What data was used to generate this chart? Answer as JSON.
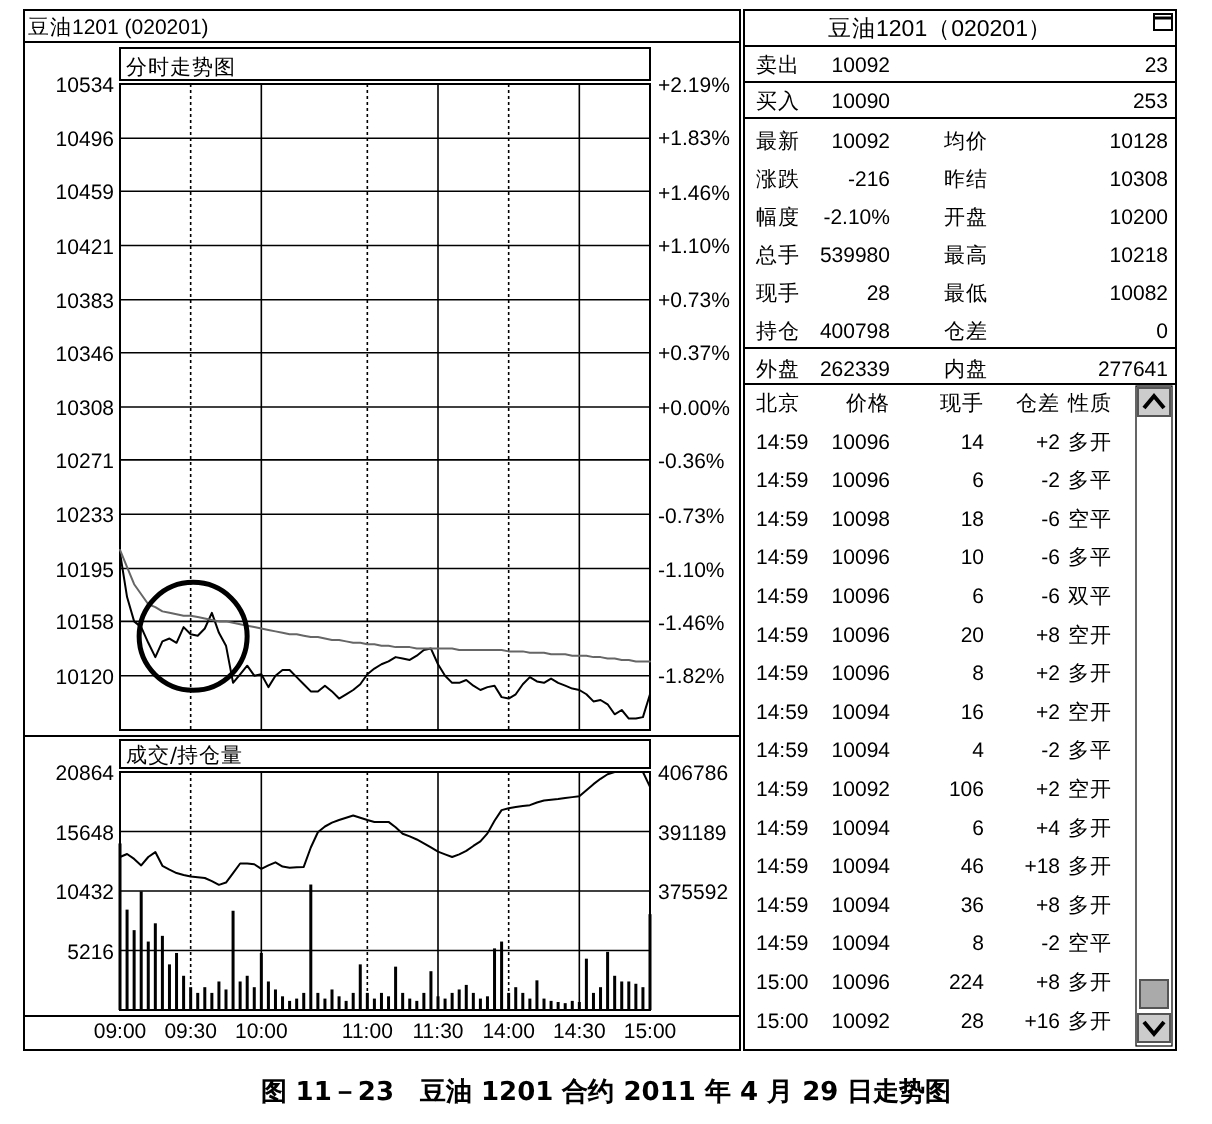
{
  "chart_data": [
    {
      "type": "line",
      "title": "分时走势图",
      "annotations": [
        "豆油1201 (020201)"
      ],
      "grid": true,
      "categories": [
        null,
        null,
        null,
        null,
        null,
        null,
        null,
        null,
        null,
        null,
        null,
        null,
        null,
        null,
        null,
        null,
        null,
        null,
        null,
        null,
        null,
        null,
        null,
        null,
        null,
        null,
        null,
        null,
        null,
        null,
        null,
        null,
        null,
        null,
        null,
        null,
        null,
        null,
        null,
        null,
        null,
        null,
        null,
        null,
        null,
        null,
        null,
        null,
        null,
        null,
        null,
        null,
        null,
        null,
        null,
        null,
        null,
        null,
        null,
        null,
        null,
        null,
        null,
        null,
        null,
        null,
        null,
        null,
        null,
        null,
        null,
        null,
        null,
        null,
        null,
        null
      ],
      "ylim": [
        10082,
        10534
      ],
      "yticks": [
        10120,
        10158,
        10195,
        10233,
        10271,
        10308,
        10346,
        10383,
        10421,
        10459,
        10496,
        10534
      ],
      "y2lim": [
        -2.19,
        2.19
      ],
      "y2ticks": [
        {
          "value": -1.82,
          "label": "-1.82%"
        },
        {
          "value": -1.46,
          "label": "-1.46%"
        },
        {
          "value": -1.1,
          "label": "-1.10%"
        },
        {
          "value": -0.73,
          "label": "-0.73%"
        },
        {
          "value": -0.36,
          "label": "-0.36%"
        },
        {
          "value": 0,
          "label": "+0.00%"
        },
        {
          "value": 0.37,
          "label": "+0.37%"
        },
        {
          "value": 0.73,
          "label": "+0.73%"
        },
        {
          "value": 1.1,
          "label": "+1.10%"
        },
        {
          "value": 1.46,
          "label": "+1.46%"
        },
        {
          "value": 1.83,
          "label": "+1.83%"
        },
        {
          "value": 2.19,
          "label": "+2.19%"
        }
      ],
      "series": [
        {
          "color": "#000000",
          "values": [
            10206,
            10175,
            10158,
            10154,
            10143,
            10133,
            10144,
            10146,
            10143,
            10154,
            10149,
            10148,
            10153,
            10164,
            10150,
            10141,
            10115,
            10121,
            10127,
            10120,
            10121,
            10112,
            10120,
            10124,
            10124,
            10119,
            10114,
            10109,
            10109,
            10113,
            10109,
            10104,
            10107,
            10110,
            10114,
            10121,
            10125,
            10128,
            10130,
            10133,
            10132,
            10131,
            10134,
            10138,
            10139,
            10128,
            10120,
            10115,
            10115,
            10117,
            10113,
            10110,
            10112,
            10113,
            10105,
            10104,
            10107,
            10114,
            10119,
            10116,
            10115,
            10118,
            10115,
            10113,
            10111,
            10110,
            10107,
            10102,
            10103,
            10100,
            10093,
            10096,
            10090,
            10090,
            10091,
            10107
          ]
        },
        {
          "color": "#666666",
          "values": [
            10208,
            10196,
            10184,
            10177,
            10170,
            10168,
            10165,
            10164,
            10163,
            10162,
            10162,
            10161,
            10160,
            10159,
            10158,
            10158,
            10157,
            10156,
            10155,
            10154,
            10153,
            10152,
            10151,
            10150,
            10149,
            10149,
            10148,
            10147,
            10147,
            10146,
            10145,
            10145,
            10144,
            10143,
            10143,
            10142,
            10142,
            10141,
            10141,
            10140,
            10140,
            10140,
            10139,
            10139,
            10139,
            10139,
            10139,
            10139,
            10138,
            10138,
            10138,
            10138,
            10138,
            10138,
            10138,
            10137,
            10137,
            10137,
            10136,
            10136,
            10136,
            10135,
            10135,
            10135,
            10134,
            10134,
            10134,
            10133,
            10133,
            10132,
            10132,
            10131,
            10131,
            10130,
            10130,
            10130
          ]
        }
      ]
    },
    {
      "type": "bar",
      "title": "成交/持仓量",
      "annotations": [
        "图 11－23　豆油 1201 合约 2011 年 4 月 29 日走势图"
      ],
      "grid": true,
      "categories": [
        "09:00",
        null,
        null,
        null,
        null,
        null,
        null,
        null,
        null,
        null,
        "09:30",
        null,
        null,
        null,
        null,
        null,
        null,
        null,
        null,
        null,
        "10:00",
        null,
        null,
        null,
        null,
        null,
        null,
        null,
        null,
        null,
        null,
        null,
        null,
        null,
        null,
        "11:00",
        null,
        null,
        null,
        null,
        null,
        null,
        null,
        null,
        null,
        "11:30",
        null,
        null,
        null,
        null,
        null,
        null,
        null,
        null,
        null,
        "14:00",
        null,
        null,
        null,
        null,
        null,
        null,
        null,
        null,
        null,
        "14:30",
        null,
        null,
        null,
        null,
        null,
        null,
        null,
        null,
        null,
        "15:00"
      ],
      "ylim": [
        0,
        20864
      ],
      "yticks": [
        5216,
        10432,
        15648,
        20864
      ],
      "y2lim": [
        344398,
        406786
      ],
      "y2ticks": [
        375592,
        391189,
        406786
      ],
      "series": [
        {
          "type": "bar",
          "color": "#000000",
          "values": [
            14600,
            8800,
            7000,
            10400,
            6000,
            7600,
            6500,
            4000,
            5000,
            3000,
            2000,
            1500,
            2000,
            1500,
            2500,
            1800,
            8700,
            2500,
            3000,
            2000,
            5000,
            2500,
            1800,
            1200,
            800,
            1000,
            1500,
            11000,
            1500,
            1000,
            1800,
            1200,
            800,
            1500,
            4000,
            1500,
            1000,
            1500,
            1200,
            3800,
            1500,
            1000,
            800,
            1500,
            3400,
            1200,
            1000,
            1500,
            1800,
            2200,
            1500,
            1000,
            1200,
            5400,
            6000,
            1500,
            2000,
            1500,
            1000,
            2600,
            1000,
            800,
            700,
            600,
            800,
            700,
            4500,
            1500,
            2000,
            5100,
            3000,
            2500,
            2500,
            2300,
            2000,
            8400
          ]
        },
        {
          "type": "line",
          "axis": "y2",
          "color": "#000000",
          "values": [
            384500,
            385300,
            384000,
            382300,
            384500,
            385800,
            382200,
            381200,
            380300,
            379800,
            379400,
            379200,
            379000,
            378200,
            377200,
            377800,
            380300,
            382800,
            382800,
            382600,
            381400,
            382300,
            383100,
            382000,
            381700,
            381800,
            381900,
            387000,
            391000,
            392500,
            393500,
            394200,
            394800,
            395400,
            394800,
            394200,
            393700,
            393700,
            393700,
            392300,
            390600,
            389900,
            389100,
            388100,
            387000,
            385900,
            385200,
            384500,
            385200,
            386100,
            387400,
            388600,
            390700,
            394000,
            396800,
            397300,
            397600,
            397900,
            398100,
            398800,
            399300,
            399500,
            399700,
            400000,
            400200,
            400400,
            402000,
            403600,
            405000,
            406200,
            406786,
            406786,
            406786,
            406786,
            406786,
            402900
          ]
        }
      ]
    },
    {
      "type": "other",
      "title": "豆油1201（020201）",
      "annotations": [
        "卖出",
        "10092",
        "23",
        "买入",
        "10090",
        "253",
        "最新",
        "10092",
        "均价",
        "10128",
        "涨跌",
        "-216",
        "昨结",
        "10308",
        "幅度",
        "-2.10%",
        "开盘",
        "10200",
        "总手",
        "539980",
        "最高",
        "10218",
        "现手",
        "28",
        "最低",
        "10082",
        "持仓",
        "400798",
        "仓差",
        "0",
        "外盘",
        "262339",
        "内盘",
        "277641",
        "北京",
        "价格",
        "现手",
        "仓差",
        "性质",
        "14:59",
        "10096",
        "14",
        "+2",
        "多开",
        "14:59",
        "10096",
        "6",
        "-2",
        "多平",
        "14:59",
        "10098",
        "18",
        "-6",
        "空平",
        "14:59",
        "10096",
        "10",
        "-6",
        "多平",
        "14:59",
        "10096",
        "6",
        "-6",
        "双平",
        "14:59",
        "10096",
        "20",
        "+8",
        "空开",
        "14:59",
        "10096",
        "8",
        "+2",
        "多开",
        "14:59",
        "10094",
        "16",
        "+2",
        "空开",
        "14:59",
        "10094",
        "4",
        "-2",
        "多平",
        "14:59",
        "10092",
        "106",
        "+2",
        "空开",
        "14:59",
        "10094",
        "6",
        "+4",
        "多开",
        "14:59",
        "10094",
        "46",
        "+18",
        "多开",
        "14:59",
        "10094",
        "36",
        "+8",
        "多开",
        "14:59",
        "10094",
        "8",
        "-2",
        "空平",
        "15:00",
        "10096",
        "224",
        "+8",
        "多开",
        "15:00",
        "10092",
        "28",
        "+16",
        "多开"
      ]
    }
  ]
}
